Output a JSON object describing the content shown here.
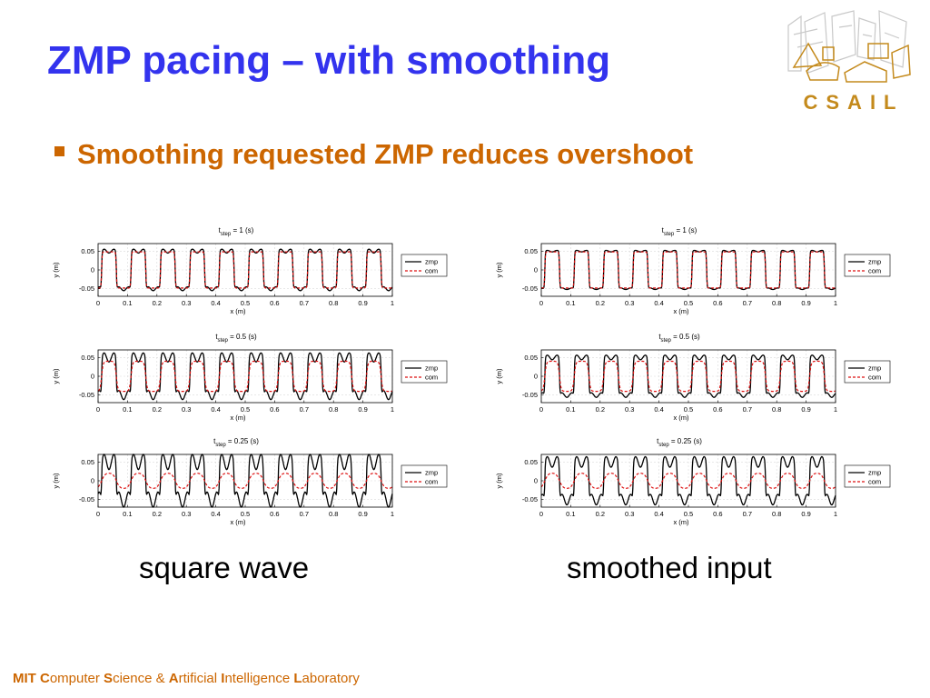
{
  "slide": {
    "title": "ZMP pacing – with smoothing",
    "bullet": "Smoothing requested ZMP reduces overshoot",
    "logo_text": "CSAIL",
    "captions": [
      "square wave",
      "smoothed input"
    ],
    "footer": [
      {
        "t": "MIT ",
        "hl": true
      },
      {
        "t": "C",
        "hl": true
      },
      {
        "t": "omputer ",
        "hl": false
      },
      {
        "t": "S",
        "hl": true
      },
      {
        "t": "cience & ",
        "hl": false
      },
      {
        "t": "A",
        "hl": true
      },
      {
        "t": "rtificial ",
        "hl": false
      },
      {
        "t": "I",
        "hl": true
      },
      {
        "t": "ntelligence ",
        "hl": false
      },
      {
        "t": "L",
        "hl": true
      },
      {
        "t": "aboratory",
        "hl": false
      }
    ]
  },
  "colors": {
    "title": "#3333ee",
    "accent": "#cc6600",
    "zmp": "#000000",
    "com": "#dd1111"
  },
  "chart_data": [
    {
      "type": "line",
      "panel": "square wave",
      "title_sub": "step",
      "title_value": "= 1 (s)",
      "xlabel": "x (m)",
      "ylabel": "y (m)",
      "xlim": [
        0,
        1
      ],
      "ylim": [
        -0.07,
        0.07
      ],
      "xticks": [
        "0",
        "0.1",
        "0.2",
        "0.3",
        "0.4",
        "0.5",
        "0.6",
        "0.7",
        "0.8",
        "0.9",
        "1"
      ],
      "yticks": [
        "0.05",
        "0",
        "-0.05"
      ],
      "grid": true,
      "legend_position": "right",
      "series": [
        {
          "name": "zmp",
          "period": 0.1,
          "amplitude": 0.05,
          "overshoot": 0.005
        },
        {
          "name": "com",
          "period": 0.1,
          "amplitude": 0.048,
          "overshoot": 0
        }
      ]
    },
    {
      "type": "line",
      "panel": "square wave",
      "title_sub": "step",
      "title_value": "= 0.5 (s)",
      "xlabel": "x (m)",
      "ylabel": "y (m)",
      "xlim": [
        0,
        1
      ],
      "ylim": [
        -0.07,
        0.07
      ],
      "xticks": [
        "0",
        "0.1",
        "0.2",
        "0.3",
        "0.4",
        "0.5",
        "0.6",
        "0.7",
        "0.8",
        "0.9",
        "1"
      ],
      "yticks": [
        "0.05",
        "0",
        "-0.05"
      ],
      "grid": true,
      "legend_position": "right",
      "series": [
        {
          "name": "zmp",
          "period": 0.1,
          "amplitude": 0.05,
          "overshoot": 0.012
        },
        {
          "name": "com",
          "period": 0.1,
          "amplitude": 0.04,
          "overshoot": 0
        }
      ]
    },
    {
      "type": "line",
      "panel": "square wave",
      "title_sub": "step",
      "title_value": "= 0.25 (s)",
      "xlabel": "x (m)",
      "ylabel": "y (m)",
      "xlim": [
        0,
        1
      ],
      "ylim": [
        -0.07,
        0.07
      ],
      "xticks": [
        "0",
        "0.1",
        "0.2",
        "0.3",
        "0.4",
        "0.5",
        "0.6",
        "0.7",
        "0.8",
        "0.9",
        "1"
      ],
      "yticks": [
        "0.05",
        "0",
        "-0.05"
      ],
      "grid": true,
      "legend_position": "right",
      "series": [
        {
          "name": "zmp",
          "period": 0.1,
          "amplitude": 0.05,
          "overshoot": 0.02
        },
        {
          "name": "com",
          "period": 0.1,
          "amplitude": 0.02,
          "overshoot": 0
        }
      ]
    },
    {
      "type": "line",
      "panel": "smoothed input",
      "title_sub": "step",
      "title_value": "= 1 (s)",
      "xlabel": "x (m)",
      "ylabel": "y (m)",
      "xlim": [
        0,
        1
      ],
      "ylim": [
        -0.07,
        0.07
      ],
      "xticks": [
        "0",
        "0.1",
        "0.2",
        "0.3",
        "0.4",
        "0.5",
        "0.6",
        "0.7",
        "0.8",
        "0.9",
        "1"
      ],
      "yticks": [
        "0.05",
        "0",
        "-0.05"
      ],
      "grid": true,
      "legend_position": "right",
      "series": [
        {
          "name": "zmp",
          "period": 0.1,
          "amplitude": 0.05,
          "overshoot": 0.002
        },
        {
          "name": "com",
          "period": 0.1,
          "amplitude": 0.048,
          "overshoot": 0
        }
      ]
    },
    {
      "type": "line",
      "panel": "smoothed input",
      "title_sub": "step",
      "title_value": "= 0.5 (s)",
      "xlabel": "x (m)",
      "ylabel": "y (m)",
      "xlim": [
        0,
        1
      ],
      "ylim": [
        -0.07,
        0.07
      ],
      "xticks": [
        "0",
        "0.1",
        "0.2",
        "0.3",
        "0.4",
        "0.5",
        "0.6",
        "0.7",
        "0.8",
        "0.9",
        "1"
      ],
      "yticks": [
        "0.05",
        "0",
        "-0.05"
      ],
      "grid": true,
      "legend_position": "right",
      "series": [
        {
          "name": "zmp",
          "period": 0.1,
          "amplitude": 0.05,
          "overshoot": 0.006
        },
        {
          "name": "com",
          "period": 0.1,
          "amplitude": 0.04,
          "overshoot": 0
        }
      ]
    },
    {
      "type": "line",
      "panel": "smoothed input",
      "title_sub": "step",
      "title_value": "= 0.25 (s)",
      "xlabel": "x (m)",
      "ylabel": "y (m)",
      "xlim": [
        0,
        1
      ],
      "ylim": [
        -0.07,
        0.07
      ],
      "xticks": [
        "0",
        "0.1",
        "0.2",
        "0.3",
        "0.4",
        "0.5",
        "0.6",
        "0.7",
        "0.8",
        "0.9",
        "1"
      ],
      "yticks": [
        "0.05",
        "0",
        "-0.05"
      ],
      "grid": true,
      "legend_position": "right",
      "series": [
        {
          "name": "zmp",
          "period": 0.1,
          "amplitude": 0.05,
          "overshoot": 0.014
        },
        {
          "name": "com",
          "period": 0.1,
          "amplitude": 0.02,
          "overshoot": 0
        }
      ]
    }
  ]
}
